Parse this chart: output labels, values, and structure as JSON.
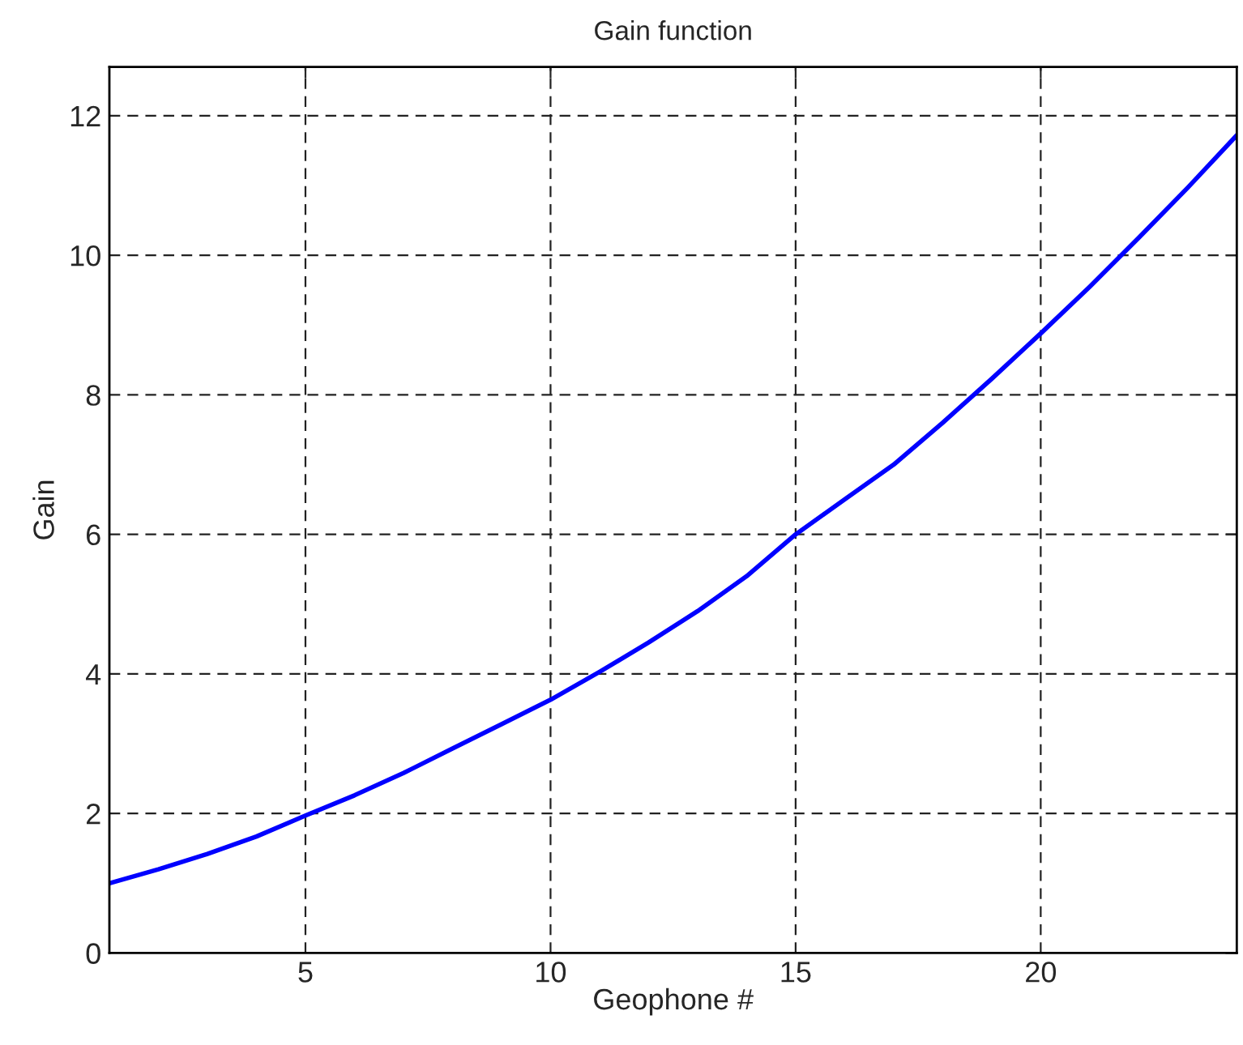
{
  "chart_data": {
    "type": "line",
    "title": "Gain function",
    "xlabel": "Geophone #",
    "ylabel": "Gain",
    "x": [
      1,
      2,
      3,
      4,
      5,
      6,
      7,
      8,
      9,
      10,
      11,
      12,
      13,
      14,
      15,
      16,
      17,
      18,
      19,
      20,
      21,
      22,
      23,
      24
    ],
    "series": [
      {
        "color": "#0000ff",
        "values": [
          1.0,
          1.2,
          1.42,
          1.67,
          1.97,
          2.26,
          2.58,
          2.93,
          3.28,
          3.63,
          4.03,
          4.45,
          4.9,
          5.4,
          6.0,
          6.5,
          7.0,
          7.6,
          8.23,
          8.88,
          9.55,
          10.25,
          10.97,
          11.72
        ]
      }
    ],
    "xlim": [
      1,
      24
    ],
    "xticks": [
      5,
      10,
      15,
      20
    ],
    "ylim": [
      0,
      12.7
    ],
    "yticks": [
      0,
      2,
      4,
      6,
      8,
      10,
      12
    ],
    "grid": true,
    "legend": false,
    "marker": "none",
    "line_style": "solid"
  }
}
